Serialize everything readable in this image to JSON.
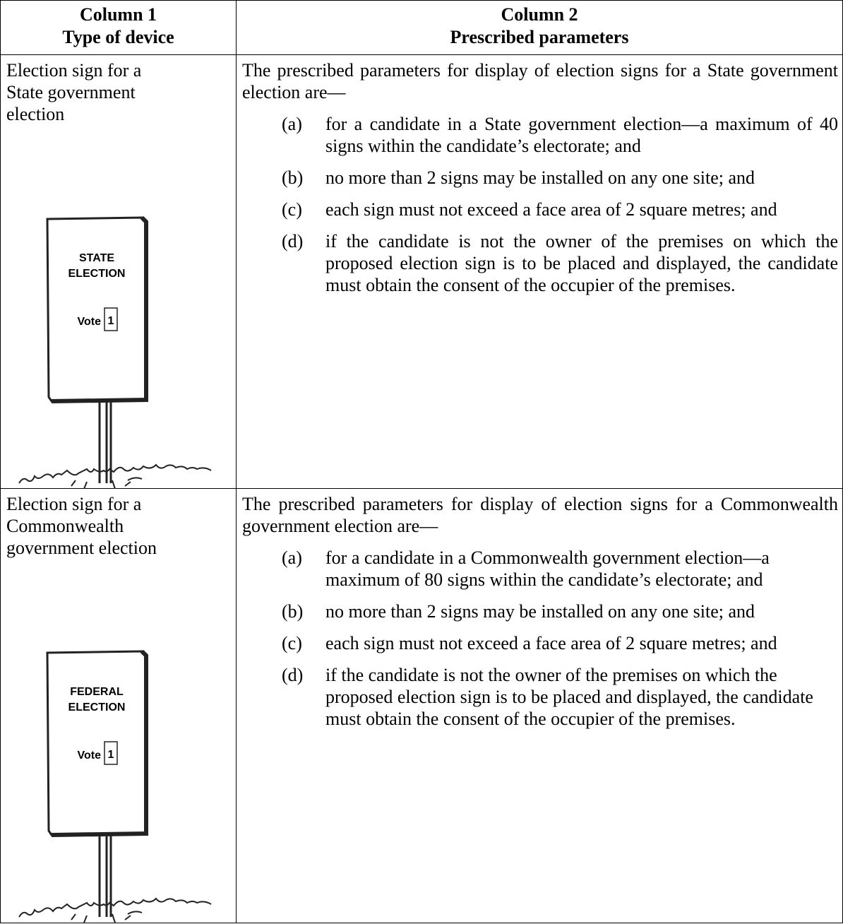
{
  "table": {
    "header": [
      [
        "Column 1",
        "Type of device"
      ],
      [
        "Column 2",
        "Prescribed parameters"
      ]
    ],
    "rows": [
      {
        "device": [
          "Election sign for a",
          "State government",
          "election"
        ],
        "sign": {
          "lines": [
            "STATE",
            "ELECTION"
          ],
          "vote": "Vote",
          "number": "1"
        },
        "intro": "The prescribed parameters for display of election signs for a State government election are—",
        "items": [
          {
            "label": "(a)",
            "text": "for a candidate in a State government election—a maximum of 40 signs within the candidate’s electorate; and"
          },
          {
            "label": "(b)",
            "text": "no more than 2 signs may be installed on any one site; and"
          },
          {
            "label": "(c)",
            "text": "each sign must not exceed a face area of 2 square metres; and"
          },
          {
            "label": "(d)",
            "text": "if the candidate is not the owner of the premises on which the proposed election sign is to be placed and displayed, the candidate must obtain the consent of the occupier of the premises."
          }
        ]
      },
      {
        "device": [
          "Election sign for a",
          "Commonwealth",
          "government election"
        ],
        "sign": {
          "lines": [
            "FEDERAL",
            "ELECTION"
          ],
          "vote": "Vote",
          "number": "1"
        },
        "intro": "The prescribed parameters for display of election signs for a Commonwealth government election are—",
        "items": [
          {
            "label": "(a)",
            "text": "for a candidate in a Commonwealth government election—a maximum of 80 signs within the candidate’s electorate; and"
          },
          {
            "label": "(b)",
            "text": "no more than 2 signs may be installed on any one site; and"
          },
          {
            "label": "(c)",
            "text": "each sign must not exceed a face area of 2 square metres; and"
          },
          {
            "label": "(d)",
            "text": "if the candidate is not the owner of the premises on which the proposed election sign is to be placed and displayed, the candidate must obtain the consent of the occupier of the premises."
          }
        ]
      }
    ]
  }
}
